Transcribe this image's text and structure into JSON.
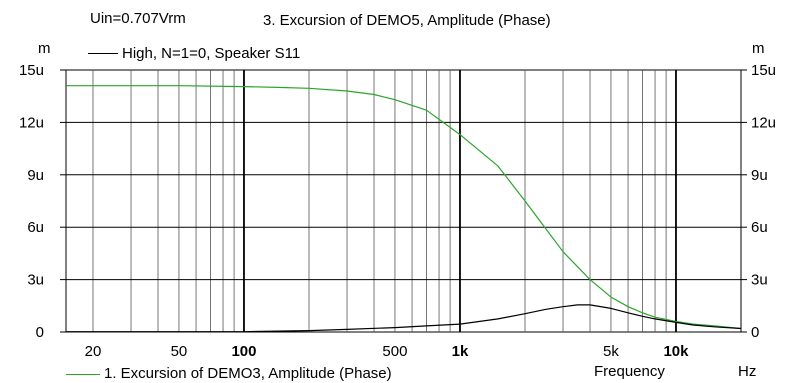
{
  "header": {
    "uin": "Uin=0.707Vrm",
    "title": "3. Excursion of DEMO5, Amplitude (Phase)",
    "unit_left": "m",
    "unit_right": "m"
  },
  "legend": {
    "top_entry": "High, N=1=0, Speaker S11",
    "bottom_entry": "1. Excursion of DEMO3, Amplitude (Phase)"
  },
  "axis": {
    "xlabel": "Frequency",
    "xunit": "Hz"
  },
  "colors": {
    "series_1": "#2aa52a",
    "series_2": "#000000",
    "grid": "#000000",
    "background": "#ffffff"
  },
  "chart_data": {
    "type": "line",
    "x_scale": "log",
    "xlim": [
      15,
      20000
    ],
    "ylim": [
      0,
      15
    ],
    "y_ticks": [
      0,
      3,
      6,
      9,
      12,
      15
    ],
    "y_tick_labels": [
      "0",
      "3u",
      "6u",
      "9u",
      "12u",
      "15u"
    ],
    "y_tick_labels_right": [
      "0",
      "3u",
      "6u",
      "9u",
      "12u",
      "15u"
    ],
    "x_tick_labels": [
      {
        "value": 20,
        "label": "20",
        "bold": false
      },
      {
        "value": 50,
        "label": "50",
        "bold": false
      },
      {
        "value": 100,
        "label": "100",
        "bold": true
      },
      {
        "value": 500,
        "label": "500",
        "bold": false
      },
      {
        "value": 1000,
        "label": "1k",
        "bold": true
      },
      {
        "value": 5000,
        "label": "5k",
        "bold": false
      },
      {
        "value": 10000,
        "label": "10k",
        "bold": true
      }
    ],
    "x_major_grid": [
      100,
      1000,
      10000
    ],
    "x_minor_grid": [
      20,
      30,
      40,
      50,
      60,
      70,
      80,
      90,
      200,
      300,
      400,
      500,
      600,
      700,
      800,
      900,
      2000,
      3000,
      4000,
      5000,
      6000,
      7000,
      8000,
      9000
    ],
    "series": [
      {
        "name": "1. Excursion of DEMO3, Amplitude (Phase)",
        "color": "#2aa52a",
        "x": [
          15,
          20,
          50,
          100,
          150,
          200,
          300,
          400,
          500,
          700,
          1000,
          1500,
          2000,
          2500,
          3000,
          4000,
          5000,
          6000,
          7000,
          8000,
          10000,
          12000,
          15000,
          20000
        ],
        "y": [
          14.1,
          14.1,
          14.1,
          14.05,
          14.0,
          13.95,
          13.8,
          13.6,
          13.3,
          12.7,
          11.3,
          9.5,
          7.5,
          5.9,
          4.6,
          3.0,
          2.0,
          1.45,
          1.1,
          0.85,
          0.6,
          0.45,
          0.35,
          0.2
        ]
      },
      {
        "name": "High, N=1=0, Speaker S11",
        "color": "#000000",
        "x": [
          15,
          100,
          200,
          300,
          500,
          700,
          1000,
          1500,
          2000,
          2500,
          3000,
          3500,
          4000,
          5000,
          6000,
          7000,
          8000,
          10000,
          12000,
          15000,
          20000
        ],
        "y": [
          0.02,
          0.02,
          0.08,
          0.15,
          0.25,
          0.35,
          0.45,
          0.75,
          1.05,
          1.3,
          1.45,
          1.55,
          1.55,
          1.35,
          1.1,
          0.9,
          0.75,
          0.55,
          0.4,
          0.3,
          0.2
        ]
      }
    ]
  }
}
